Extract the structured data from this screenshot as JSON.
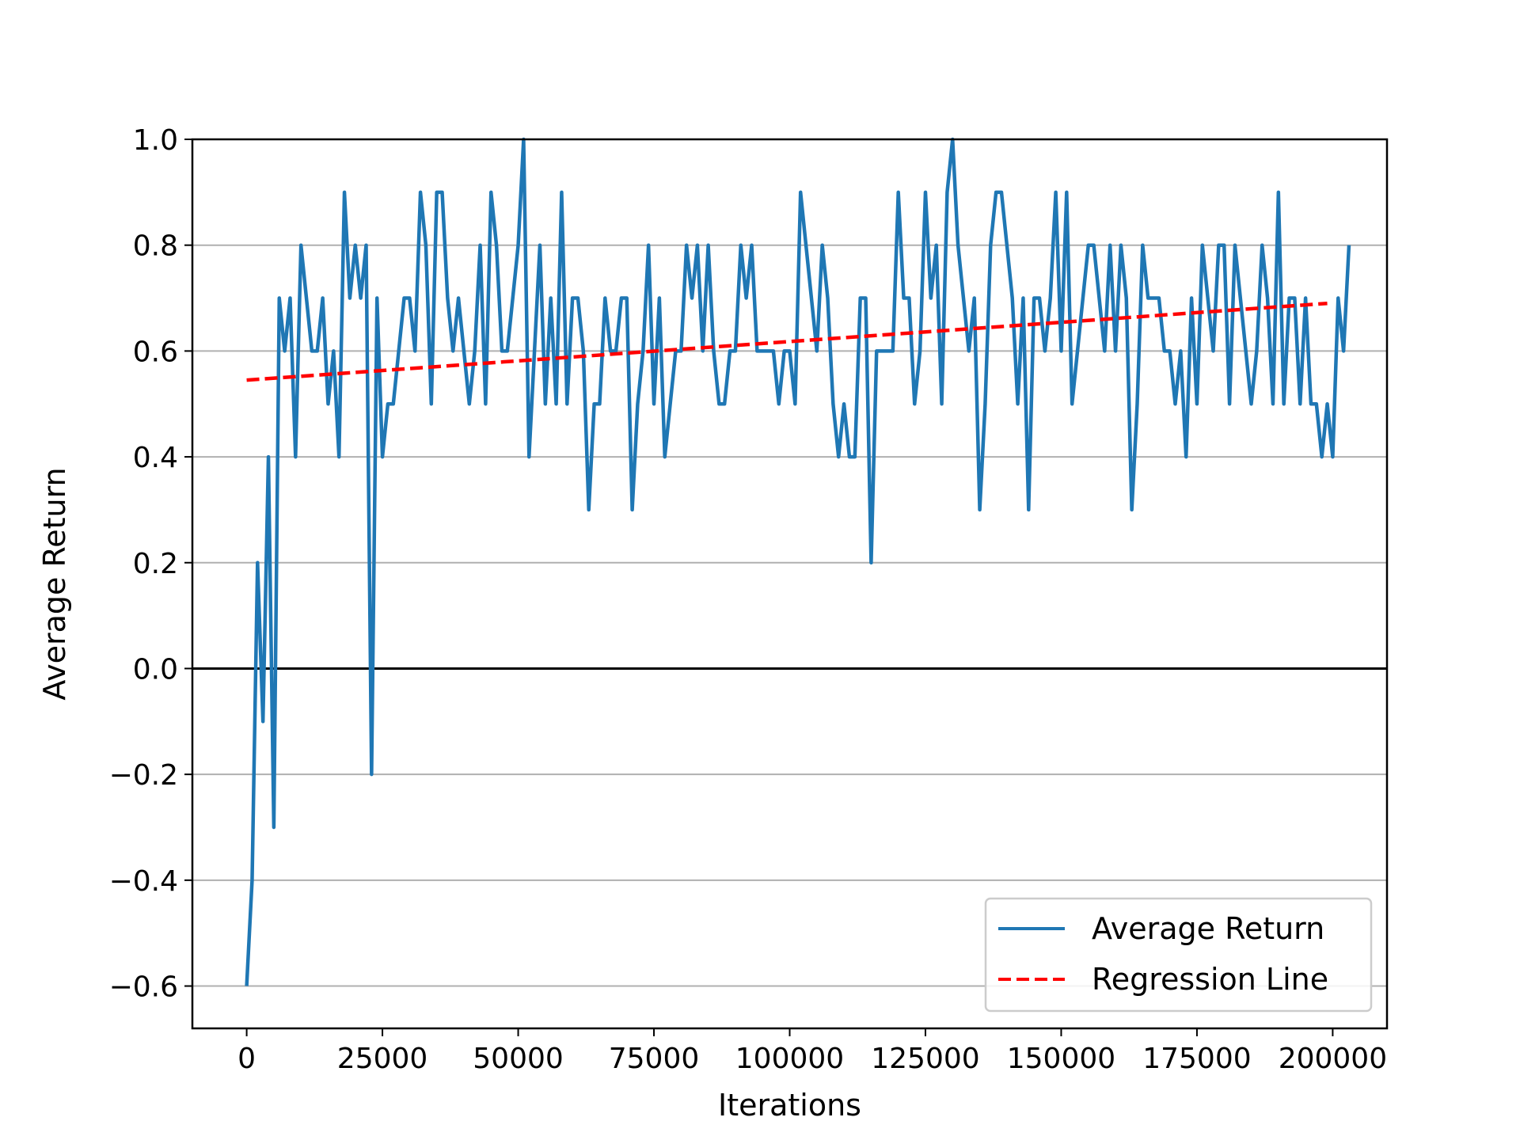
{
  "chart_data": {
    "type": "line",
    "title": "",
    "xlabel": "Iterations",
    "ylabel": "Average Return",
    "xlim": [
      -10000,
      210000
    ],
    "ylim": [
      -0.68,
      1.0
    ],
    "xticks": [
      0,
      25000,
      50000,
      75000,
      100000,
      125000,
      150000,
      175000,
      200000
    ],
    "xtick_labels": [
      "0",
      "25000",
      "50000",
      "75000",
      "100000",
      "125000",
      "150000",
      "175000",
      "200000"
    ],
    "yticks": [
      -0.6,
      -0.4,
      -0.2,
      0.0,
      0.2,
      0.4,
      0.6,
      0.8,
      1.0
    ],
    "ytick_labels": [
      "−0.6",
      "−0.4",
      "−0.2",
      "0.0",
      "0.2",
      "0.4",
      "0.6",
      "0.8",
      "1.0"
    ],
    "grid": "horizontal",
    "zero_line": true,
    "legend_position": "lower-right",
    "x_start": 0,
    "x_step": 1000,
    "series": [
      {
        "name": "Average Return",
        "color": "#1f77b4",
        "style": "solid",
        "values": [
          -0.6,
          -0.4,
          0.2,
          -0.1,
          0.4,
          -0.3,
          0.7,
          0.6,
          0.7,
          0.4,
          0.8,
          0.7,
          0.6,
          0.6,
          0.7,
          0.5,
          0.6,
          0.4,
          0.9,
          0.7,
          0.8,
          0.7,
          0.8,
          -0.2,
          0.7,
          0.4,
          0.5,
          0.5,
          0.6,
          0.7,
          0.7,
          0.6,
          0.9,
          0.8,
          0.5,
          0.9,
          0.9,
          0.7,
          0.6,
          0.7,
          0.6,
          0.5,
          0.6,
          0.8,
          0.5,
          0.9,
          0.8,
          0.6,
          0.6,
          0.7,
          0.8,
          1.0,
          0.4,
          0.6,
          0.8,
          0.5,
          0.7,
          0.5,
          0.9,
          0.5,
          0.7,
          0.7,
          0.6,
          0.3,
          0.5,
          0.5,
          0.7,
          0.6,
          0.6,
          0.7,
          0.7,
          0.3,
          0.5,
          0.6,
          0.8,
          0.5,
          0.7,
          0.4,
          0.5,
          0.6,
          0.6,
          0.8,
          0.7,
          0.8,
          0.6,
          0.8,
          0.6,
          0.5,
          0.5,
          0.6,
          0.6,
          0.8,
          0.7,
          0.8,
          0.6,
          0.6,
          0.6,
          0.6,
          0.5,
          0.6,
          0.6,
          0.5,
          0.9,
          0.8,
          0.7,
          0.6,
          0.8,
          0.7,
          0.5,
          0.4,
          0.5,
          0.4,
          0.4,
          0.7,
          0.7,
          0.2,
          0.6,
          0.6,
          0.6,
          0.6,
          0.9,
          0.7,
          0.7,
          0.5,
          0.6,
          0.9,
          0.7,
          0.8,
          0.5,
          0.9,
          1.0,
          0.8,
          0.7,
          0.6,
          0.7,
          0.3,
          0.5,
          0.8,
          0.9,
          0.9,
          0.8,
          0.7,
          0.5,
          0.7,
          0.3,
          0.7,
          0.7,
          0.6,
          0.7,
          0.9,
          0.6,
          0.9,
          0.5,
          0.6,
          0.7,
          0.8,
          0.8,
          0.7,
          0.6,
          0.8,
          0.6,
          0.8,
          0.7,
          0.3,
          0.5,
          0.8,
          0.7,
          0.7,
          0.7,
          0.6,
          0.6,
          0.5,
          0.6,
          0.4,
          0.7,
          0.5,
          0.8,
          0.7,
          0.6,
          0.8,
          0.8,
          0.5,
          0.8,
          0.7,
          0.6,
          0.5,
          0.6,
          0.8,
          0.7,
          0.5,
          0.9,
          0.5,
          0.7,
          0.7,
          0.5,
          0.7,
          0.5,
          0.5,
          0.4,
          0.5,
          0.4,
          0.7,
          0.6,
          0.8
        ]
      },
      {
        "name": "Regression Line",
        "color": "#ff0000",
        "style": "dashed",
        "x": [
          0,
          199000
        ],
        "values": [
          0.545,
          0.69
        ]
      }
    ]
  }
}
